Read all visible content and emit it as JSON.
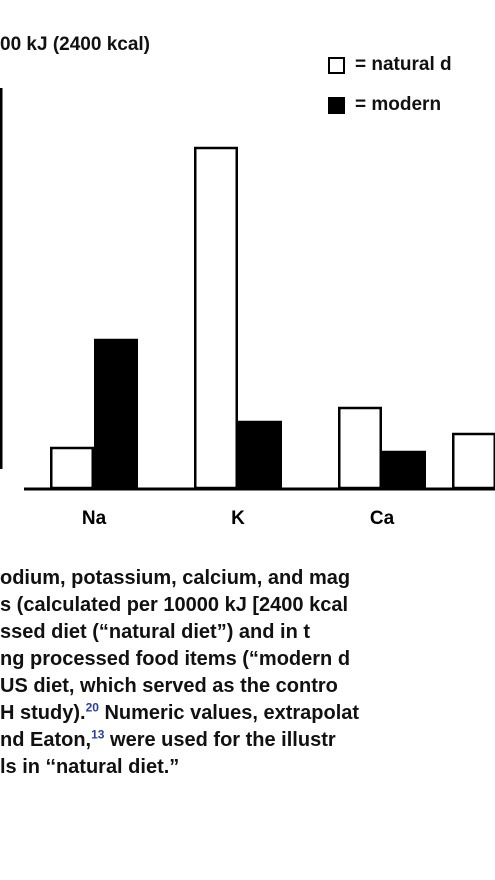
{
  "chart_data": {
    "type": "bar",
    "title": "00 kJ (2400 kcal)",
    "categories": [
      "Na",
      "K",
      "Ca"
    ],
    "series": [
      {
        "name": "= natural d",
        "color": "#ffffff",
        "values": [
          1.0,
          8.5,
          2.0
        ]
      },
      {
        "name": "= modern",
        "color": "#000000",
        "values": [
          3.7,
          1.65,
          0.9
        ]
      }
    ],
    "partial_category_visible": {
      "series_index": 0,
      "value": 1.35
    },
    "xlabel": "",
    "ylabel": "",
    "ylim": [
      0,
      10
    ],
    "grid": false,
    "legend_position": "top-right"
  },
  "caption": {
    "lines": [
      {
        "text": "odium, potassium, calcium, and mag"
      },
      {
        "text": "s (calculated per 10000 kJ [2400 kcal"
      },
      {
        "text": "ssed diet (“natural diet”) and in t"
      },
      {
        "text": "ng processed food items (“modern d"
      },
      {
        "text": " US diet, which served as the contro"
      },
      {
        "text": "H study).",
        "ref": "20",
        "after": " Numeric values, extrapolat"
      },
      {
        "text": "nd Eaton,",
        "ref": "13",
        "after": " were used for the illustr"
      },
      {
        "text": "ls in ‘‘natural diet.”"
      }
    ]
  }
}
